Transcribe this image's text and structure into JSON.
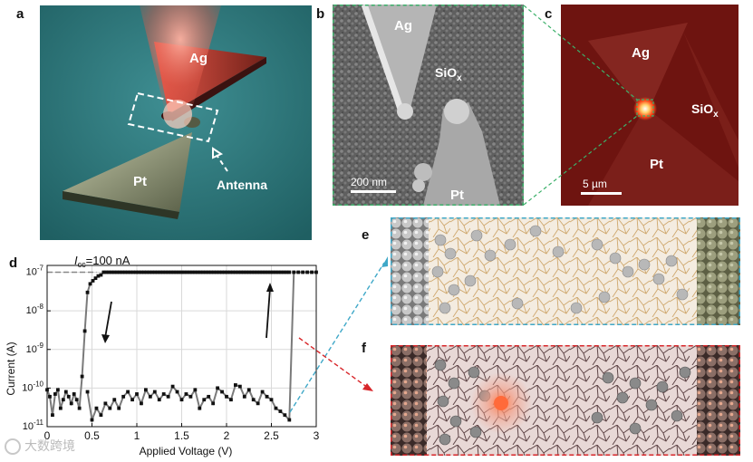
{
  "panels": {
    "a": {
      "label": "a",
      "ag": "Ag",
      "pt": "Pt",
      "antenna": "Antenna"
    },
    "b": {
      "label": "b",
      "ag": "Ag",
      "siox_base": "SiO",
      "siox_sub": "x",
      "pt": "Pt",
      "scale": "200 nm"
    },
    "c": {
      "label": "c",
      "ag": "Ag",
      "siox_base": "SiO",
      "siox_sub": "x",
      "pt": "Pt",
      "scale": "5 µm"
    },
    "d": {
      "label": "d",
      "icc_base": "I",
      "icc_sub": "cc",
      "icc_value": "=100 nA"
    },
    "e": {
      "label": "e"
    },
    "f": {
      "label": "f"
    }
  },
  "watermark": "大数跨境",
  "colors": {
    "panel_a_bg": "#2f7a7d",
    "panel_c_bg": "#6e1410",
    "teal_link": "#3fa8c8",
    "red_link": "#d8262a"
  },
  "chart_data": {
    "type": "line",
    "xlabel": "Applied Voltage (V)",
    "ylabel": "Current (A)",
    "xlim": [
      0,
      3
    ],
    "ylim": [
      1e-11,
      1.5e-07
    ],
    "yscale": "log",
    "grid": true,
    "xticks": [
      "0",
      "0.5",
      "1",
      "1.5",
      "2",
      "2.5",
      "3"
    ],
    "yticks": [
      {
        "base": "10",
        "exp": "-11",
        "value": 1e-11
      },
      {
        "base": "10",
        "exp": "-10",
        "value": 1e-10
      },
      {
        "base": "10",
        "exp": "-9",
        "value": 1e-09
      },
      {
        "base": "10",
        "exp": "-8",
        "value": 1e-08
      },
      {
        "base": "10",
        "exp": "-7",
        "value": 1e-07
      }
    ],
    "compliance_current": 1e-07,
    "series": [
      {
        "x": [
          0.0,
          0.03,
          0.06,
          0.09,
          0.12,
          0.15,
          0.18,
          0.21,
          0.24,
          0.27,
          0.3,
          0.33,
          0.36,
          0.39,
          0.42,
          0.45,
          0.48,
          0.51,
          0.54,
          0.57,
          0.6,
          0.63,
          0.66,
          0.69,
          0.72,
          0.75,
          0.78,
          0.81,
          0.84,
          0.87,
          0.9,
          0.93,
          0.96,
          0.99,
          1.02,
          1.05,
          1.08,
          1.11,
          1.14,
          1.17,
          1.2,
          1.23,
          1.26,
          1.29,
          1.32,
          1.35,
          1.38,
          1.41,
          1.44,
          1.47,
          1.5,
          1.53,
          1.56,
          1.59,
          1.62,
          1.65,
          1.68,
          1.71,
          1.74,
          1.77,
          1.8,
          1.83,
          1.86,
          1.89,
          1.92,
          1.95,
          1.98,
          2.01,
          2.04,
          2.07,
          2.1,
          2.13,
          2.16,
          2.19,
          2.22,
          2.25,
          2.28,
          2.31,
          2.34,
          2.37,
          2.4,
          2.43,
          2.46,
          2.49,
          2.52,
          2.55,
          2.58,
          2.61,
          2.64,
          2.67,
          2.7
        ],
        "y": [
          9e-11,
          6e-11,
          2e-11,
          7e-11,
          9e-11,
          3e-11,
          5e-11,
          8e-11,
          6e-11,
          4e-11,
          7e-11,
          5e-11,
          3e-11,
          2e-10,
          3e-09,
          3e-08,
          5e-08,
          6e-08,
          7e-08,
          8e-08,
          8.5e-08,
          1e-07,
          1e-07,
          1e-07,
          1e-07,
          1e-07,
          1e-07,
          1e-07,
          1e-07,
          1e-07,
          1e-07,
          1e-07,
          1e-07,
          1e-07,
          1e-07,
          1e-07,
          1e-07,
          1e-07,
          1e-07,
          1e-07,
          1e-07,
          1e-07,
          1e-07,
          1e-07,
          1e-07,
          1e-07,
          1e-07,
          1e-07,
          1e-07,
          1e-07,
          1e-07,
          1e-07,
          1e-07,
          1e-07,
          1e-07,
          1e-07,
          1e-07,
          1e-07,
          1e-07,
          1e-07,
          1e-07,
          1e-07,
          1e-07,
          1e-07,
          1e-07,
          1e-07,
          1e-07,
          1e-07,
          1e-07,
          1e-07,
          1e-07,
          1e-07,
          1e-07,
          1e-07,
          1e-07,
          1e-07,
          1e-07,
          1e-07,
          1e-07,
          1e-07,
          1e-07,
          1e-07,
          1e-07,
          1e-07,
          1e-07,
          1e-07,
          1e-07,
          1e-07,
          1e-07,
          1e-07,
          1e-07
        ]
      },
      {
        "x": [
          0.45,
          0.5,
          0.55,
          0.6,
          0.65,
          0.7,
          0.75,
          0.8,
          0.85,
          0.9,
          0.95,
          1.0,
          1.05,
          1.1,
          1.15,
          1.2,
          1.25,
          1.3,
          1.35,
          1.4,
          1.45,
          1.5,
          1.55,
          1.6,
          1.65,
          1.7,
          1.75,
          1.8,
          1.85,
          1.9,
          1.95,
          2.0,
          2.05,
          2.1,
          2.15,
          2.2,
          2.25,
          2.3,
          2.35,
          2.4,
          2.45,
          2.5,
          2.55,
          2.6,
          2.65,
          2.7,
          2.75,
          2.8,
          2.85,
          2.9,
          2.95,
          3.0
        ],
        "y": [
          8e-11,
          1.5e-11,
          3e-11,
          2e-11,
          4e-11,
          3e-11,
          5e-11,
          3e-11,
          6e-11,
          8e-11,
          5e-11,
          7e-11,
          4e-11,
          9e-11,
          6e-11,
          8e-11,
          5e-11,
          7e-11,
          6e-11,
          1.1e-10,
          8e-11,
          5e-11,
          7e-11,
          6e-11,
          9e-11,
          3e-11,
          5e-11,
          6e-11,
          4e-11,
          1e-10,
          8e-11,
          6e-11,
          5e-11,
          1.2e-10,
          1.1e-10,
          6e-11,
          9e-11,
          5e-11,
          4e-11,
          8e-11,
          6e-11,
          5e-11,
          3e-11,
          2.5e-11,
          2e-11,
          1.5e-11,
          1e-07,
          1e-07,
          1e-07,
          1e-07,
          1e-07,
          1e-07
        ]
      }
    ]
  }
}
